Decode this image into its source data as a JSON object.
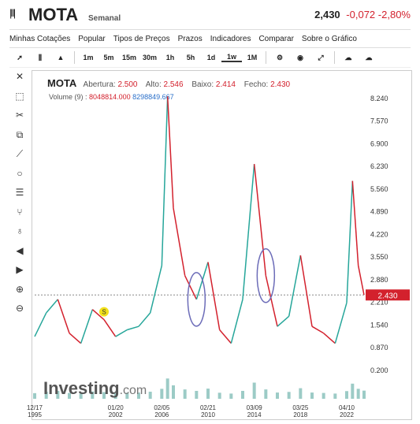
{
  "header": {
    "symbol": "MOTA",
    "interval": "Semanal",
    "last": "2,430",
    "change": "-0,072",
    "change_pct": "-2,80%"
  },
  "menu": [
    "Minhas Cotações",
    "Popular",
    "Tipos de Preços",
    "Prazos",
    "Indicadores",
    "Comparar",
    "Sobre o Gráfico"
  ],
  "toolbar": {
    "intervals": [
      "1m",
      "5m",
      "15m",
      "30m",
      "1h",
      "5h",
      "1d",
      "1w",
      "1M"
    ],
    "active": "1w"
  },
  "info": {
    "open_label": "Abertura:",
    "open": "2.500",
    "high_label": "Alto:",
    "high": "2.546",
    "low_label": "Baixo:",
    "low": "2.414",
    "close_label": "Fecho:",
    "close": "2.430"
  },
  "volume": {
    "label": "Volume (9)",
    "v1": "8048814.000",
    "v2": "8298849.667"
  },
  "colors": {
    "up": "#26a69a",
    "down": "#d3212d",
    "accent": "#d3212d",
    "ellipse": "#6c6cb8"
  },
  "brand": {
    "logo": "Investing",
    "logo_suffix": ".com"
  },
  "chart_data": {
    "type": "line",
    "title": "MOTA",
    "x_ticks": [
      "12/17 1995",
      "01/20 2002",
      "02/05 2006",
      "02/21 2010",
      "03/09 2014",
      "03/25 2018",
      "04/10 2022"
    ],
    "y_ticks": [
      8.24,
      7.57,
      6.9,
      6.23,
      5.56,
      4.89,
      4.22,
      3.55,
      2.88,
      2.21,
      1.54,
      0.87,
      0.2
    ],
    "ylim": [
      0.2,
      8.4
    ],
    "last_price": 2.43,
    "x": [
      1995,
      1996,
      1997,
      1998,
      1999,
      2000,
      2001,
      2002,
      2003,
      2004,
      2005,
      2006,
      2006.5,
      2007,
      2008,
      2009,
      2010,
      2011,
      2012,
      2013,
      2014,
      2015,
      2016,
      2017,
      2018,
      2019,
      2020,
      2021,
      2022,
      2022.5,
      2023,
      2023.5
    ],
    "values": [
      1.2,
      1.9,
      2.3,
      1.3,
      1.0,
      2.0,
      1.7,
      1.2,
      1.4,
      1.5,
      1.9,
      3.3,
      8.3,
      5.0,
      3.0,
      2.3,
      3.4,
      1.4,
      1.0,
      2.3,
      6.3,
      3.0,
      1.5,
      1.8,
      3.6,
      1.5,
      1.3,
      1.0,
      2.2,
      5.8,
      3.3,
      2.43
    ],
    "annotations": [
      {
        "type": "ellipse",
        "x": 2009
      },
      {
        "type": "ellipse",
        "x": 2015
      },
      {
        "type": "marker",
        "label": "S",
        "x": 2001
      }
    ],
    "grid": false,
    "legend": "none"
  }
}
